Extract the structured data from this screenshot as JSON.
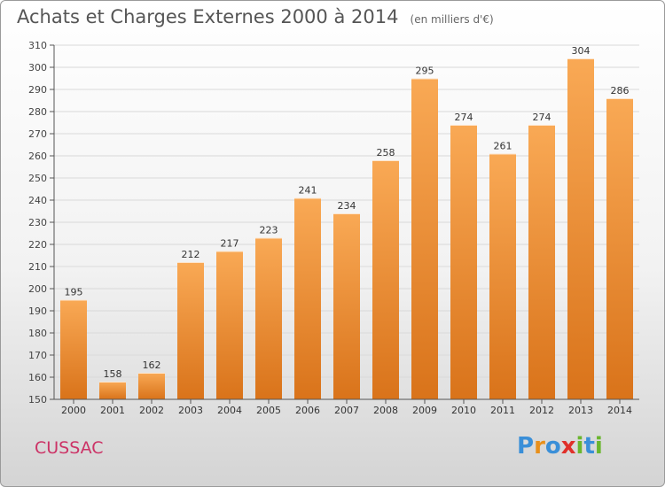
{
  "header": {
    "title": "Achats et Charges Externes 2000 à 2014",
    "unit_note": "(en milliers d'€)"
  },
  "footer": {
    "commune": "CUSSAC",
    "logo_text": "Proxiti",
    "logo_letters": [
      {
        "ch": "P",
        "color": "#3a8fd8"
      },
      {
        "ch": "r",
        "color": "#e8901c"
      },
      {
        "ch": "o",
        "color": "#3a8fd8"
      },
      {
        "ch": "x",
        "color": "#e0302a"
      },
      {
        "ch": "i",
        "color": "#6ab62e"
      },
      {
        "ch": "t",
        "color": "#3a8fd8"
      },
      {
        "ch": "i",
        "color": "#6ab62e"
      }
    ]
  },
  "colors": {
    "bar_top": "#f9a955",
    "bar_bottom": "#d9731a",
    "grid": "#d9d9d9",
    "axis": "#555555",
    "commune": "#cc3366"
  },
  "chart_data": {
    "type": "bar",
    "categories": [
      "2000",
      "2001",
      "2002",
      "2003",
      "2004",
      "2005",
      "2006",
      "2007",
      "2008",
      "2009",
      "2010",
      "2011",
      "2012",
      "2013",
      "2014"
    ],
    "values": [
      195,
      158,
      162,
      212,
      217,
      223,
      241,
      234,
      258,
      295,
      274,
      261,
      274,
      304,
      286
    ],
    "ylim": [
      150,
      310
    ],
    "yticks": [
      150,
      160,
      170,
      180,
      190,
      200,
      210,
      220,
      230,
      240,
      250,
      260,
      270,
      280,
      290,
      300,
      310
    ],
    "grid": true,
    "data_labels": true
  }
}
